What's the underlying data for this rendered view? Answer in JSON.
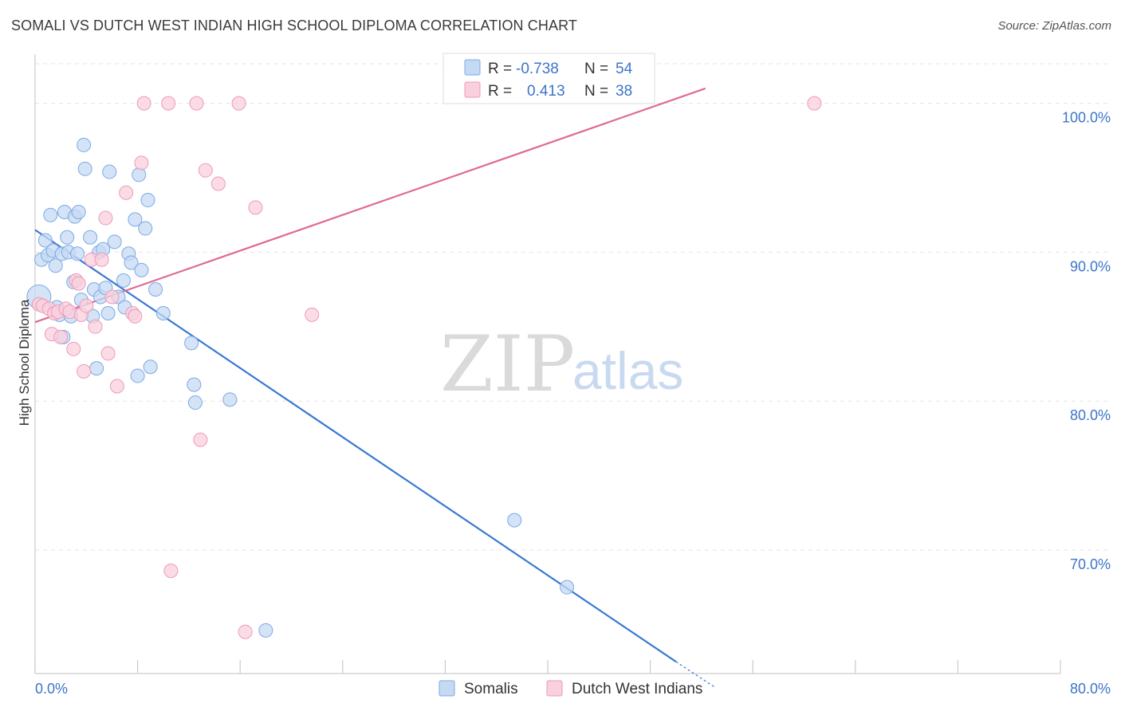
{
  "header": {
    "title": "SOMALI VS DUTCH WEST INDIAN HIGH SCHOOL DIPLOMA CORRELATION CHART",
    "source": "Source: ZipAtlas.com"
  },
  "watermark": {
    "zip": "ZIP",
    "atlas": "atlas"
  },
  "colors": {
    "somali": "#7aaae6",
    "somali_fill": "#c5d9f3",
    "somali_line": "#3a78d4",
    "dutch": "#ee9ab6",
    "dutch_fill": "#f9d0de",
    "dutch_line": "#e06a92",
    "tick_text": "#3d74c9",
    "grid": "#e3e3e3"
  },
  "legend": {
    "r_label": "R =",
    "n_label": "N =",
    "rows": [
      {
        "series": "Somalis",
        "r": "-0.738",
        "n": "54"
      },
      {
        "series": "Dutch West Indians",
        "r": "0.413",
        "n": "38"
      }
    ]
  },
  "chart_data": {
    "type": "scatter",
    "title": "SOMALI VS DUTCH WEST INDIAN HIGH SCHOOL DIPLOMA CORRELATION CHART",
    "xlabel": "",
    "ylabel": "High School Diploma",
    "xlim": [
      0,
      80
    ],
    "ylim": [
      61.7,
      103.3
    ],
    "x_tick_labels": [
      "0.0%",
      "80.0%"
    ],
    "y_ticks": [
      100,
      90,
      80,
      70
    ],
    "y_tick_labels": [
      "100.0%",
      "90.0%",
      "80.0%",
      "70.0%"
    ],
    "grid": true,
    "legend_position": "top-center",
    "series": [
      {
        "name": "Somalis",
        "r": -0.738,
        "n": 54,
        "trend": {
          "x": [
            0,
            50
          ],
          "y": [
            91.5,
            62.5
          ],
          "dashed_to": [
            53,
            60.8
          ]
        },
        "points": [
          [
            0.3,
            87.0
          ],
          [
            0.5,
            89.5
          ],
          [
            0.8,
            90.8
          ],
          [
            1.0,
            89.8
          ],
          [
            1.2,
            92.5
          ],
          [
            1.4,
            90.1
          ],
          [
            1.6,
            89.1
          ],
          [
            1.7,
            86.3
          ],
          [
            1.9,
            85.8
          ],
          [
            2.1,
            89.9
          ],
          [
            2.2,
            84.3
          ],
          [
            2.3,
            92.7
          ],
          [
            2.5,
            91.0
          ],
          [
            2.6,
            90.0
          ],
          [
            2.8,
            85.7
          ],
          [
            3.0,
            88.0
          ],
          [
            3.1,
            92.4
          ],
          [
            3.3,
            89.9
          ],
          [
            3.4,
            92.7
          ],
          [
            3.6,
            86.8
          ],
          [
            3.8,
            97.2
          ],
          [
            3.9,
            95.6
          ],
          [
            4.3,
            91.0
          ],
          [
            4.5,
            85.7
          ],
          [
            4.6,
            87.5
          ],
          [
            4.8,
            82.2
          ],
          [
            5.0,
            90.0
          ],
          [
            5.1,
            87.0
          ],
          [
            5.3,
            90.2
          ],
          [
            5.5,
            87.6
          ],
          [
            5.7,
            85.9
          ],
          [
            5.8,
            95.4
          ],
          [
            6.2,
            90.7
          ],
          [
            6.5,
            87.0
          ],
          [
            6.9,
            88.1
          ],
          [
            7.0,
            86.3
          ],
          [
            7.3,
            89.9
          ],
          [
            7.5,
            89.3
          ],
          [
            7.8,
            92.2
          ],
          [
            8.0,
            81.7
          ],
          [
            8.1,
            95.2
          ],
          [
            8.3,
            88.8
          ],
          [
            8.6,
            91.6
          ],
          [
            8.8,
            93.5
          ],
          [
            9.0,
            82.3
          ],
          [
            9.4,
            87.5
          ],
          [
            10.0,
            85.9
          ],
          [
            12.2,
            83.9
          ],
          [
            12.4,
            81.1
          ],
          [
            12.5,
            79.9
          ],
          [
            15.2,
            80.1
          ],
          [
            18.0,
            64.6
          ],
          [
            37.4,
            72.0
          ],
          [
            41.5,
            67.5
          ]
        ]
      },
      {
        "name": "Dutch West Indians",
        "r": 0.413,
        "n": 38,
        "trend": {
          "x": [
            0,
            52.3
          ],
          "y": [
            85.3,
            101.0
          ]
        },
        "points": [
          [
            0.3,
            86.5
          ],
          [
            0.6,
            86.4
          ],
          [
            1.1,
            86.2
          ],
          [
            1.3,
            84.5
          ],
          [
            1.5,
            85.9
          ],
          [
            1.8,
            86.0
          ],
          [
            2.0,
            84.3
          ],
          [
            2.4,
            86.2
          ],
          [
            2.7,
            86.0
          ],
          [
            3.0,
            83.5
          ],
          [
            3.2,
            88.1
          ],
          [
            3.4,
            87.9
          ],
          [
            3.6,
            85.8
          ],
          [
            3.8,
            82.0
          ],
          [
            4.0,
            86.4
          ],
          [
            4.4,
            89.5
          ],
          [
            4.7,
            85.0
          ],
          [
            5.2,
            89.5
          ],
          [
            5.5,
            92.3
          ],
          [
            5.7,
            83.2
          ],
          [
            6.0,
            87.0
          ],
          [
            6.4,
            81.0
          ],
          [
            7.1,
            94.0
          ],
          [
            7.6,
            85.9
          ],
          [
            7.8,
            85.7
          ],
          [
            8.3,
            96.0
          ],
          [
            8.5,
            100.0
          ],
          [
            10.4,
            100.0
          ],
          [
            10.6,
            68.6
          ],
          [
            12.6,
            100.0
          ],
          [
            12.9,
            77.4
          ],
          [
            13.3,
            95.5
          ],
          [
            14.3,
            94.6
          ],
          [
            15.9,
            100.0
          ],
          [
            16.4,
            64.5
          ],
          [
            17.2,
            93.0
          ],
          [
            21.6,
            85.8
          ],
          [
            60.8,
            100.0
          ]
        ]
      }
    ]
  }
}
